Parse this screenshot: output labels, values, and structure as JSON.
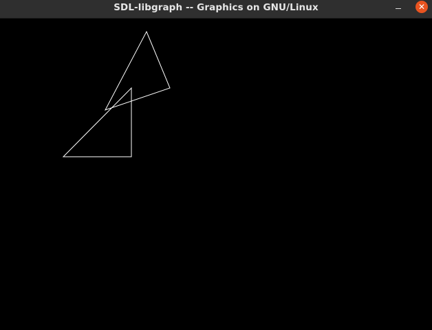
{
  "window": {
    "title": "SDL-libgraph -- Graphics on GNU/Linux",
    "minimize_icon": "minimize-icon",
    "close_icon": "close-icon",
    "close_glyph": "✕",
    "accent_color": "#e95420",
    "titlebar_color": "#2f2f2f"
  },
  "canvas": {
    "background_color": "#000000",
    "stroke_color": "#ffffff",
    "shapes": [
      "triangle",
      "triangle"
    ]
  }
}
